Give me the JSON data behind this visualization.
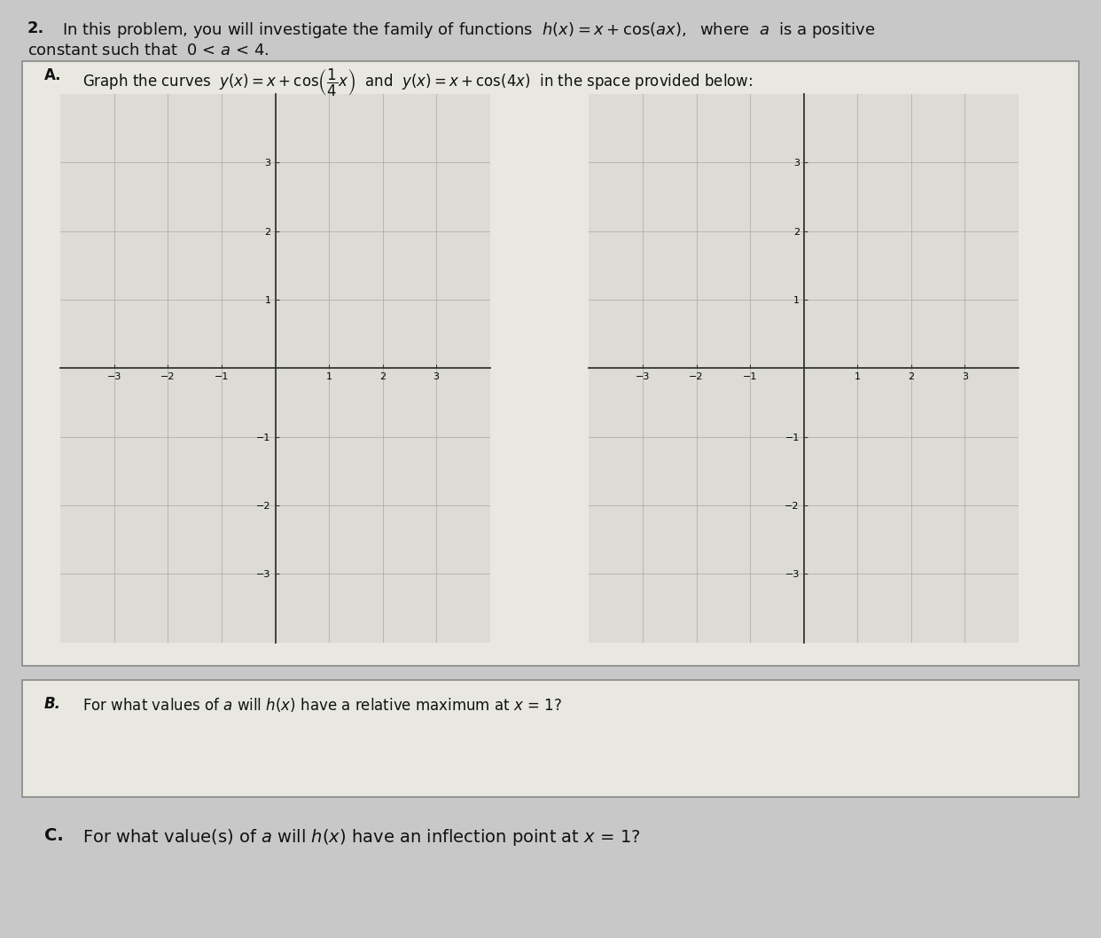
{
  "grid_xlim": [
    -4,
    4
  ],
  "grid_ylim": [
    -4,
    4
  ],
  "grid_xticks": [
    -3,
    -2,
    -1,
    1,
    2,
    3
  ],
  "grid_yticks": [
    -3,
    -2,
    -1,
    1,
    2,
    3
  ],
  "page_bg": "#c8c8c8",
  "box_bg": "#e8e8e0",
  "graph_bg": "#dcdcd4",
  "grid_color": "#b0b0a8",
  "axis_color": "#333333",
  "text_color": "#111111",
  "font_size_title": 13,
  "font_size_section": 12,
  "font_size_tick": 8,
  "font_size_c": 14
}
